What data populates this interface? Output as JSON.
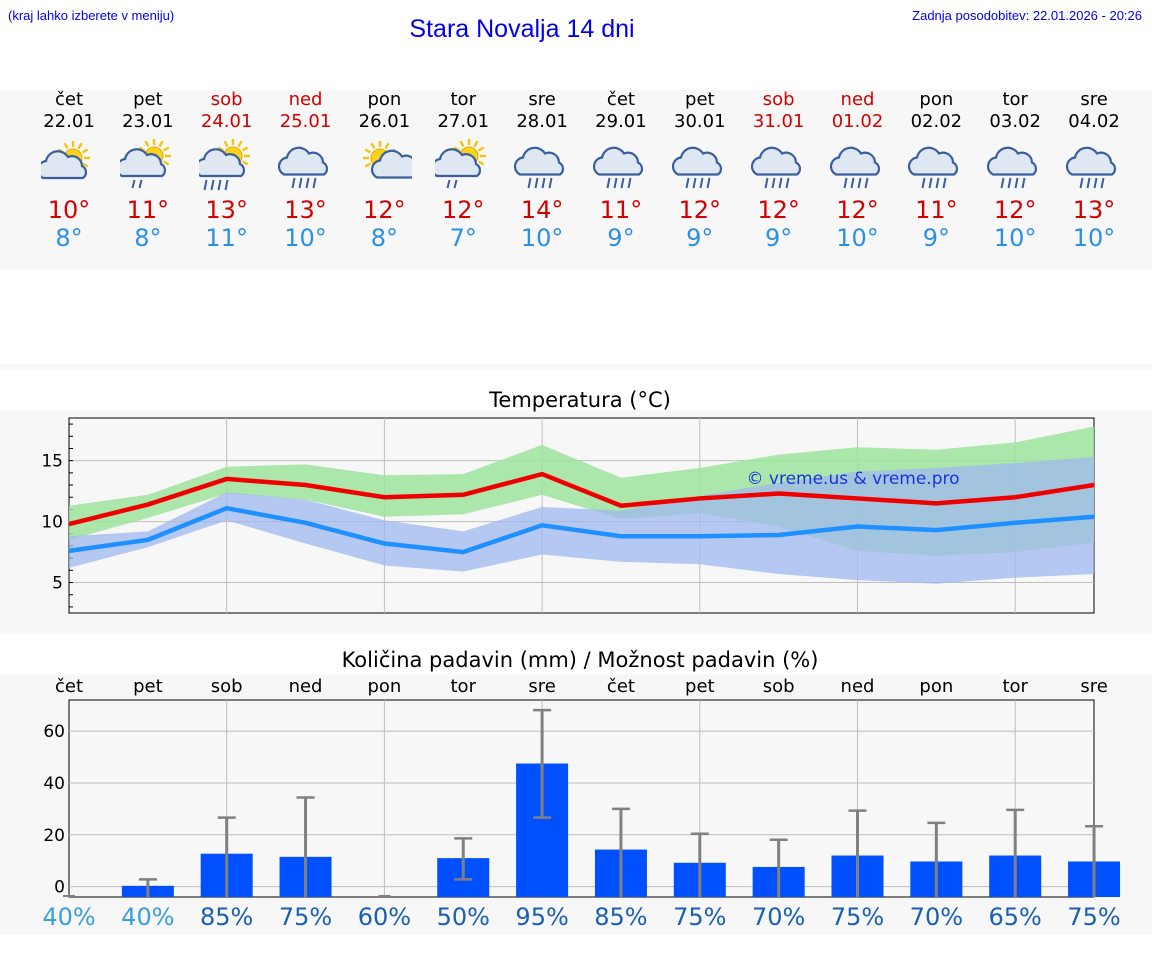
{
  "header": {
    "note": "(kraj lahko izberete v meniju)",
    "title": "Stara Novalja 14 dni",
    "updated": "Zadnja posodobitev: 22.01.2026 - 20:26"
  },
  "colors": {
    "max": "#ee0000",
    "min": "#1e90ff",
    "max_band": "#9ee39e",
    "min_band": "#9fb8f0",
    "bar": "#0050ff",
    "error": "#808080"
  },
  "days": [
    {
      "name": "čet",
      "date": "22.01",
      "weekend": false,
      "icon": "partly-cloudy-icon",
      "tmax": "10°",
      "tmin": "8°"
    },
    {
      "name": "pet",
      "date": "23.01",
      "weekend": false,
      "icon": "sun-cloud-drizzle-icon",
      "tmax": "11°",
      "tmin": "8°"
    },
    {
      "name": "sob",
      "date": "24.01",
      "weekend": true,
      "icon": "sun-cloud-rain-icon",
      "tmax": "13°",
      "tmin": "11°"
    },
    {
      "name": "ned",
      "date": "25.01",
      "weekend": true,
      "icon": "rain-cloud-icon",
      "tmax": "13°",
      "tmin": "10°"
    },
    {
      "name": "pon",
      "date": "26.01",
      "weekend": false,
      "icon": "sun-small-cloud-icon",
      "tmax": "12°",
      "tmin": "8°"
    },
    {
      "name": "tor",
      "date": "27.01",
      "weekend": false,
      "icon": "sun-cloud-drizzle-icon",
      "tmax": "12°",
      "tmin": "7°"
    },
    {
      "name": "sre",
      "date": "28.01",
      "weekend": false,
      "icon": "rain-cloud-icon",
      "tmax": "14°",
      "tmin": "10°"
    },
    {
      "name": "čet",
      "date": "29.01",
      "weekend": false,
      "icon": "rain-cloud-icon",
      "tmax": "11°",
      "tmin": "9°"
    },
    {
      "name": "pet",
      "date": "30.01",
      "weekend": false,
      "icon": "rain-cloud-icon",
      "tmax": "12°",
      "tmin": "9°"
    },
    {
      "name": "sob",
      "date": "31.01",
      "weekend": true,
      "icon": "rain-cloud-icon",
      "tmax": "12°",
      "tmin": "9°"
    },
    {
      "name": "ned",
      "date": "01.02",
      "weekend": true,
      "icon": "rain-cloud-icon",
      "tmax": "12°",
      "tmin": "10°"
    },
    {
      "name": "pon",
      "date": "02.02",
      "weekend": false,
      "icon": "rain-cloud-icon",
      "tmax": "11°",
      "tmin": "9°"
    },
    {
      "name": "tor",
      "date": "03.02",
      "weekend": false,
      "icon": "rain-cloud-icon",
      "tmax": "12°",
      "tmin": "10°"
    },
    {
      "name": "sre",
      "date": "04.02",
      "weekend": false,
      "icon": "rain-cloud-icon",
      "tmax": "13°",
      "tmin": "10°"
    }
  ],
  "chart_data": [
    {
      "type": "line",
      "title": "Temperatura (°C)",
      "watermark": "© vreme.us & vreme.pro",
      "ylim": [
        2.5,
        18.5
      ],
      "yticks": [
        "5",
        "10",
        "15"
      ],
      "x": [
        0,
        1,
        2,
        3,
        4,
        5,
        6,
        7,
        8,
        9,
        10,
        11,
        12,
        13
      ],
      "series": [
        {
          "name": "max",
          "values": [
            9.8,
            11.4,
            13.5,
            13.0,
            12.0,
            12.2,
            13.9,
            11.3,
            11.9,
            12.3,
            11.9,
            11.5,
            12.0,
            13.0
          ],
          "band_high": [
            11.3,
            12.2,
            14.5,
            14.7,
            13.8,
            13.9,
            16.3,
            13.6,
            14.4,
            15.5,
            16.1,
            15.9,
            16.5,
            17.8
          ],
          "band_low": [
            8.5,
            10.3,
            12.3,
            11.8,
            10.4,
            10.6,
            12.2,
            10.2,
            10.7,
            9.6,
            7.6,
            7.2,
            7.5,
            8.3
          ]
        },
        {
          "name": "min",
          "values": [
            7.6,
            8.5,
            11.1,
            9.9,
            8.2,
            7.5,
            9.7,
            8.8,
            8.8,
            8.9,
            9.6,
            9.3,
            9.9,
            10.4
          ],
          "band_high": [
            8.8,
            9.2,
            12.4,
            11.8,
            10.1,
            9.2,
            11.2,
            10.9,
            12.1,
            13.2,
            14.1,
            14.4,
            14.8,
            15.3
          ],
          "band_low": [
            6.2,
            7.9,
            10.1,
            8.2,
            6.4,
            5.9,
            7.3,
            6.7,
            6.5,
            5.7,
            5.2,
            4.9,
            5.4,
            5.7
          ]
        }
      ]
    },
    {
      "type": "bar",
      "title": "Količina padavin (mm) / Možnost padavin (%)",
      "categories": [
        "čet",
        "pet",
        "sob",
        "ned",
        "pon",
        "tor",
        "sre",
        "čet",
        "pet",
        "sob",
        "ned",
        "pon",
        "tor",
        "sre"
      ],
      "ylim": [
        -4,
        72
      ],
      "yticks": [
        "0",
        "20",
        "40",
        "60"
      ],
      "values": [
        0,
        0.3,
        12.7,
        11.5,
        0,
        11.0,
        47.5,
        14.3,
        9.2,
        7.6,
        12.0,
        9.7,
        12.0,
        9.7
      ],
      "err_high": [
        0,
        2.8,
        26.6,
        34.4,
        0,
        18.6,
        68.1,
        30.0,
        20.4,
        18.1,
        29.3,
        24.6,
        29.6,
        23.3
      ],
      "err_low": [
        0,
        0,
        0,
        0,
        0,
        2.8,
        26.6,
        0,
        0,
        0,
        0,
        0,
        0,
        0
      ],
      "probability": [
        "40%",
        "40%",
        "85%",
        "75%",
        "60%",
        "50%",
        "95%",
        "85%",
        "75%",
        "70%",
        "75%",
        "70%",
        "65%",
        "75%"
      ]
    }
  ]
}
